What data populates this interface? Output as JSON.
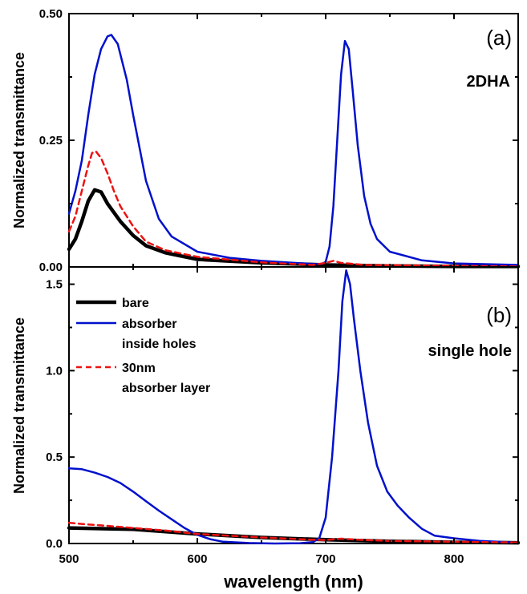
{
  "chart_data": [
    {
      "type": "line",
      "panel_label": "(a)",
      "sample_label": "2DHA",
      "ylabel": "Normalized transmittance",
      "xlabel": "",
      "xlim": [
        500,
        850
      ],
      "ylim": [
        0,
        0.5
      ],
      "x_ticks": [
        500,
        600,
        700,
        800
      ],
      "y_ticks": [
        "0.00",
        "0.25",
        "0.50"
      ],
      "y_tick_values": [
        0,
        0.25,
        0.5
      ],
      "grid": false,
      "series": [
        {
          "key": "bare",
          "color": "#000000",
          "dash": "solid",
          "width": 4.5,
          "points": [
            [
              500,
              0.035
            ],
            [
              505,
              0.055
            ],
            [
              510,
              0.09
            ],
            [
              515,
              0.13
            ],
            [
              520,
              0.152
            ],
            [
              525,
              0.148
            ],
            [
              530,
              0.125
            ],
            [
              540,
              0.09
            ],
            [
              550,
              0.062
            ],
            [
              560,
              0.042
            ],
            [
              575,
              0.028
            ],
            [
              600,
              0.015
            ],
            [
              650,
              0.008
            ],
            [
              700,
              0.004
            ],
            [
              750,
              0.002
            ],
            [
              800,
              0.001
            ],
            [
              850,
              0.001
            ]
          ]
        },
        {
          "key": "absorber",
          "color": "#0010cc",
          "dash": "solid",
          "width": 2.5,
          "points": [
            [
              500,
              0.105
            ],
            [
              505,
              0.15
            ],
            [
              510,
              0.21
            ],
            [
              515,
              0.3
            ],
            [
              520,
              0.38
            ],
            [
              525,
              0.43
            ],
            [
              530,
              0.455
            ],
            [
              533,
              0.458
            ],
            [
              538,
              0.44
            ],
            [
              545,
              0.37
            ],
            [
              550,
              0.3
            ],
            [
              560,
              0.17
            ],
            [
              570,
              0.095
            ],
            [
              580,
              0.06
            ],
            [
              600,
              0.03
            ],
            [
              625,
              0.018
            ],
            [
              650,
              0.012
            ],
            [
              675,
              0.008
            ],
            [
              690,
              0.006
            ],
            [
              697,
              0.006
            ],
            [
              700,
              0.01
            ],
            [
              703,
              0.04
            ],
            [
              706,
              0.12
            ],
            [
              709,
              0.25
            ],
            [
              712,
              0.38
            ],
            [
              715,
              0.446
            ],
            [
              718,
              0.43
            ],
            [
              721,
              0.35
            ],
            [
              725,
              0.24
            ],
            [
              730,
              0.14
            ],
            [
              735,
              0.085
            ],
            [
              740,
              0.055
            ],
            [
              750,
              0.03
            ],
            [
              775,
              0.013
            ],
            [
              800,
              0.007
            ],
            [
              850,
              0.004
            ]
          ]
        },
        {
          "key": "layer",
          "color": "#ee1111",
          "dash": "7,5",
          "width": 2.5,
          "points": [
            [
              500,
              0.07
            ],
            [
              505,
              0.1
            ],
            [
              510,
              0.15
            ],
            [
              515,
              0.2
            ],
            [
              518,
              0.225
            ],
            [
              521,
              0.228
            ],
            [
              525,
              0.215
            ],
            [
              530,
              0.185
            ],
            [
              535,
              0.15
            ],
            [
              540,
              0.12
            ],
            [
              550,
              0.08
            ],
            [
              560,
              0.05
            ],
            [
              575,
              0.033
            ],
            [
              600,
              0.02
            ],
            [
              650,
              0.009
            ],
            [
              690,
              0.004
            ],
            [
              700,
              0.008
            ],
            [
              706,
              0.012
            ],
            [
              712,
              0.008
            ],
            [
              730,
              0.004
            ],
            [
              800,
              0.002
            ],
            [
              850,
              0.001
            ]
          ]
        }
      ]
    },
    {
      "type": "line",
      "panel_label": "(b)",
      "sample_label": "single hole",
      "ylabel": "Normalized transmittance",
      "xlabel": "wavelength (nm)",
      "xlim": [
        500,
        850
      ],
      "ylim": [
        0,
        1.6
      ],
      "x_ticks": [
        500,
        600,
        700,
        800
      ],
      "y_ticks": [
        "0.0",
        "0.5",
        "1.0",
        "1.5"
      ],
      "y_tick_values": [
        0,
        0.5,
        1.0,
        1.5
      ],
      "grid": false,
      "legend": {
        "placement": "top-left",
        "entries": [
          {
            "key": "bare",
            "lines": [
              "bare"
            ]
          },
          {
            "key": "absorber",
            "lines": [
              "absorber",
              "inside holes"
            ]
          },
          {
            "key": "layer",
            "lines": [
              "30nm",
              "absorber layer"
            ]
          }
        ]
      },
      "series": [
        {
          "key": "bare",
          "color": "#000000",
          "dash": "solid",
          "width": 4.5,
          "points": [
            [
              500,
              0.09
            ],
            [
              550,
              0.082
            ],
            [
              600,
              0.055
            ],
            [
              650,
              0.035
            ],
            [
              700,
              0.022
            ],
            [
              750,
              0.013
            ],
            [
              800,
              0.007
            ],
            [
              850,
              0.004
            ]
          ]
        },
        {
          "key": "absorber",
          "color": "#0010cc",
          "dash": "solid",
          "width": 2.5,
          "points": [
            [
              500,
              0.435
            ],
            [
              510,
              0.43
            ],
            [
              520,
              0.41
            ],
            [
              530,
              0.385
            ],
            [
              540,
              0.35
            ],
            [
              550,
              0.3
            ],
            [
              560,
              0.245
            ],
            [
              570,
              0.19
            ],
            [
              580,
              0.14
            ],
            [
              590,
              0.09
            ],
            [
              600,
              0.05
            ],
            [
              610,
              0.025
            ],
            [
              620,
              0.01
            ],
            [
              640,
              0.003
            ],
            [
              660,
              0.0
            ],
            [
              680,
              0.002
            ],
            [
              690,
              0.008
            ],
            [
              695,
              0.03
            ],
            [
              700,
              0.15
            ],
            [
              705,
              0.5
            ],
            [
              710,
              1.0
            ],
            [
              713,
              1.4
            ],
            [
              716,
              1.58
            ],
            [
              719,
              1.5
            ],
            [
              722,
              1.3
            ],
            [
              727,
              1.0
            ],
            [
              733,
              0.7
            ],
            [
              740,
              0.45
            ],
            [
              748,
              0.3
            ],
            [
              756,
              0.22
            ],
            [
              765,
              0.15
            ],
            [
              775,
              0.085
            ],
            [
              785,
              0.045
            ],
            [
              800,
              0.03
            ],
            [
              820,
              0.015
            ],
            [
              850,
              0.005
            ]
          ]
        },
        {
          "key": "layer",
          "color": "#ee1111",
          "dash": "7,5",
          "width": 2.5,
          "points": [
            [
              500,
              0.12
            ],
            [
              510,
              0.113
            ],
            [
              525,
              0.105
            ],
            [
              550,
              0.09
            ],
            [
              575,
              0.075
            ],
            [
              600,
              0.055
            ],
            [
              650,
              0.035
            ],
            [
              690,
              0.022
            ],
            [
              700,
              0.02
            ],
            [
              712,
              0.028
            ],
            [
              725,
              0.022
            ],
            [
              750,
              0.015
            ],
            [
              800,
              0.01
            ],
            [
              850,
              0.006
            ]
          ]
        }
      ]
    }
  ]
}
